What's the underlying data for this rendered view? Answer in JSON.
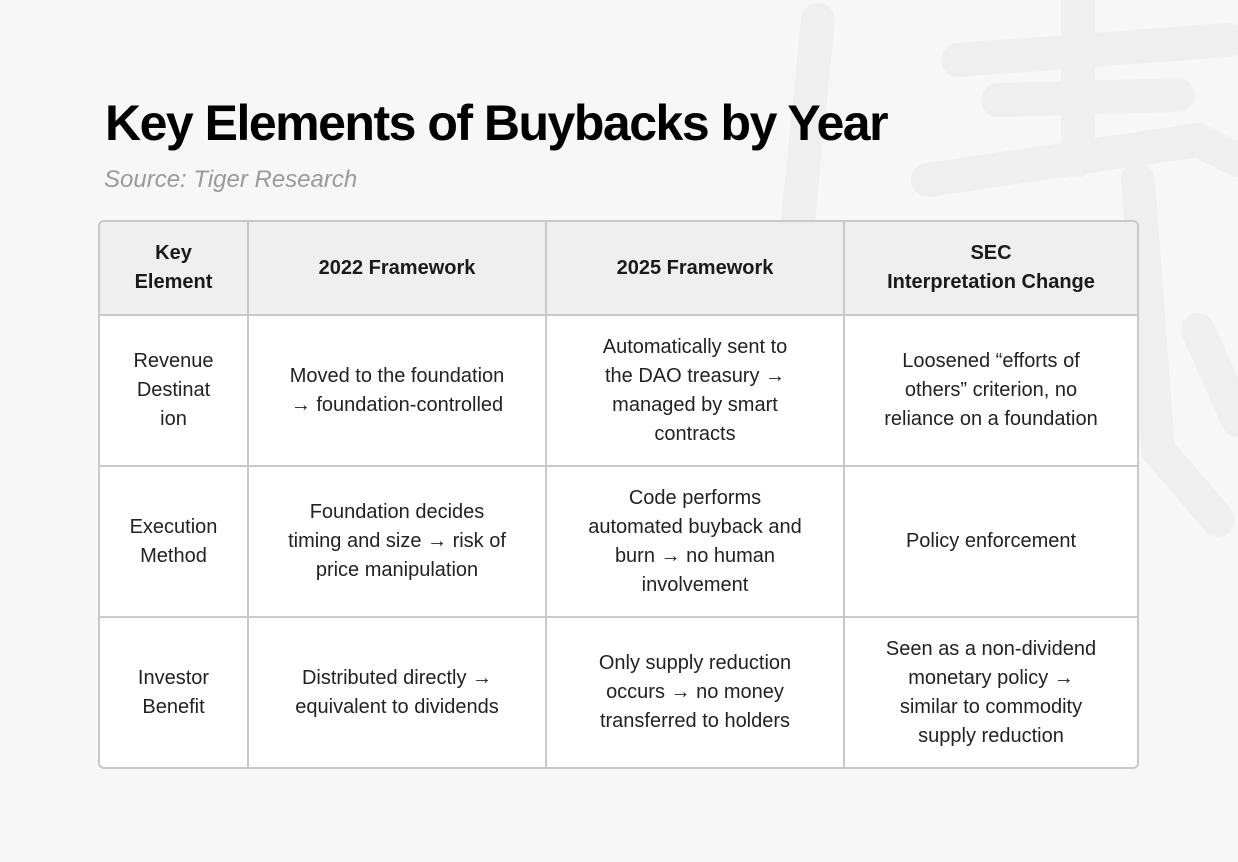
{
  "title": "Key Elements of Buybacks by Year",
  "source": "Source: Tiger Research",
  "table": {
    "headers": [
      "Key\nElement",
      "2022 Framework",
      "2025 Framework",
      "SEC\nInterpretation Change"
    ],
    "rows": [
      [
        "Revenue\nDestinat\nion",
        "Moved to the foundation\n→ foundation-controlled",
        "Automatically sent to\nthe DAO treasury →\nmanaged by smart\ncontracts",
        "Loosened “efforts of\nothers” criterion, no\nreliance on a foundation"
      ],
      [
        "Execution\nMethod",
        "Foundation decides\ntiming and size → risk of\nprice manipulation",
        "Code performs\nautomated buyback and\nburn → no human\ninvolvement",
        "Policy enforcement"
      ],
      [
        "Investor\nBenefit",
        "Distributed directly →\nequivalent to dividends",
        "Only supply reduction\noccurs → no money\ntransferred to holders",
        "Seen as a non-dividend\nmonetary policy →\nsimilar to commodity\nsupply reduction"
      ]
    ]
  }
}
